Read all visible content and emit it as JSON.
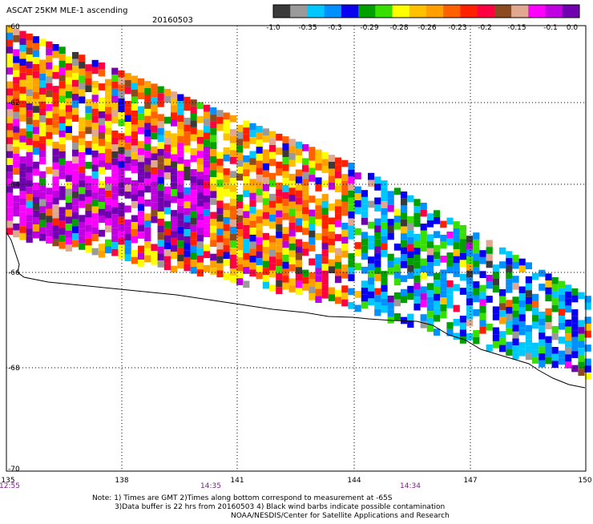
{
  "header": {
    "title": "ASCAT 25KM MLE-1 ascending",
    "date": "20160503"
  },
  "colorbar": {
    "colors": [
      "#3a3a3a",
      "#9a9a9a",
      "#00c8ff",
      "#0090ff",
      "#0a00f0",
      "#00a000",
      "#38e000",
      "#ffff00",
      "#ffc000",
      "#ffa000",
      "#ff6000",
      "#ff2000",
      "#ff0040",
      "#8b4a20",
      "#e0a890",
      "#ff00ff",
      "#c000e0",
      "#7000b0"
    ],
    "labels": [
      "-1.0",
      "-0.35",
      "-0.3",
      "-0.29",
      "-0.28",
      "-0.26",
      "-0.23",
      "-0.2",
      "-0.15",
      "-0.1",
      "0.0"
    ]
  },
  "map": {
    "lat_labels": [
      "-60",
      "-62",
      "-64",
      "-66",
      "-68",
      "-70"
    ],
    "lon_labels": [
      "135",
      "138",
      "141",
      "144",
      "147",
      "150"
    ],
    "time_labels": [
      {
        "text": "12:55",
        "lon": 135
      },
      {
        "text": "14:35",
        "lon": 140.3
      },
      {
        "text": "14:34",
        "lon": 146.4
      }
    ]
  },
  "footer": {
    "note1": "Note: 1) Times are GMT 2)Times along bottom correspond to measurement at -65S",
    "note2": "3)Data buffer is 22 hrs from 20160503 4) Black wind barbs indicate possible contamination",
    "credit": "NOAA/NESDIS/Center for Satellite Applications and Research"
  }
}
